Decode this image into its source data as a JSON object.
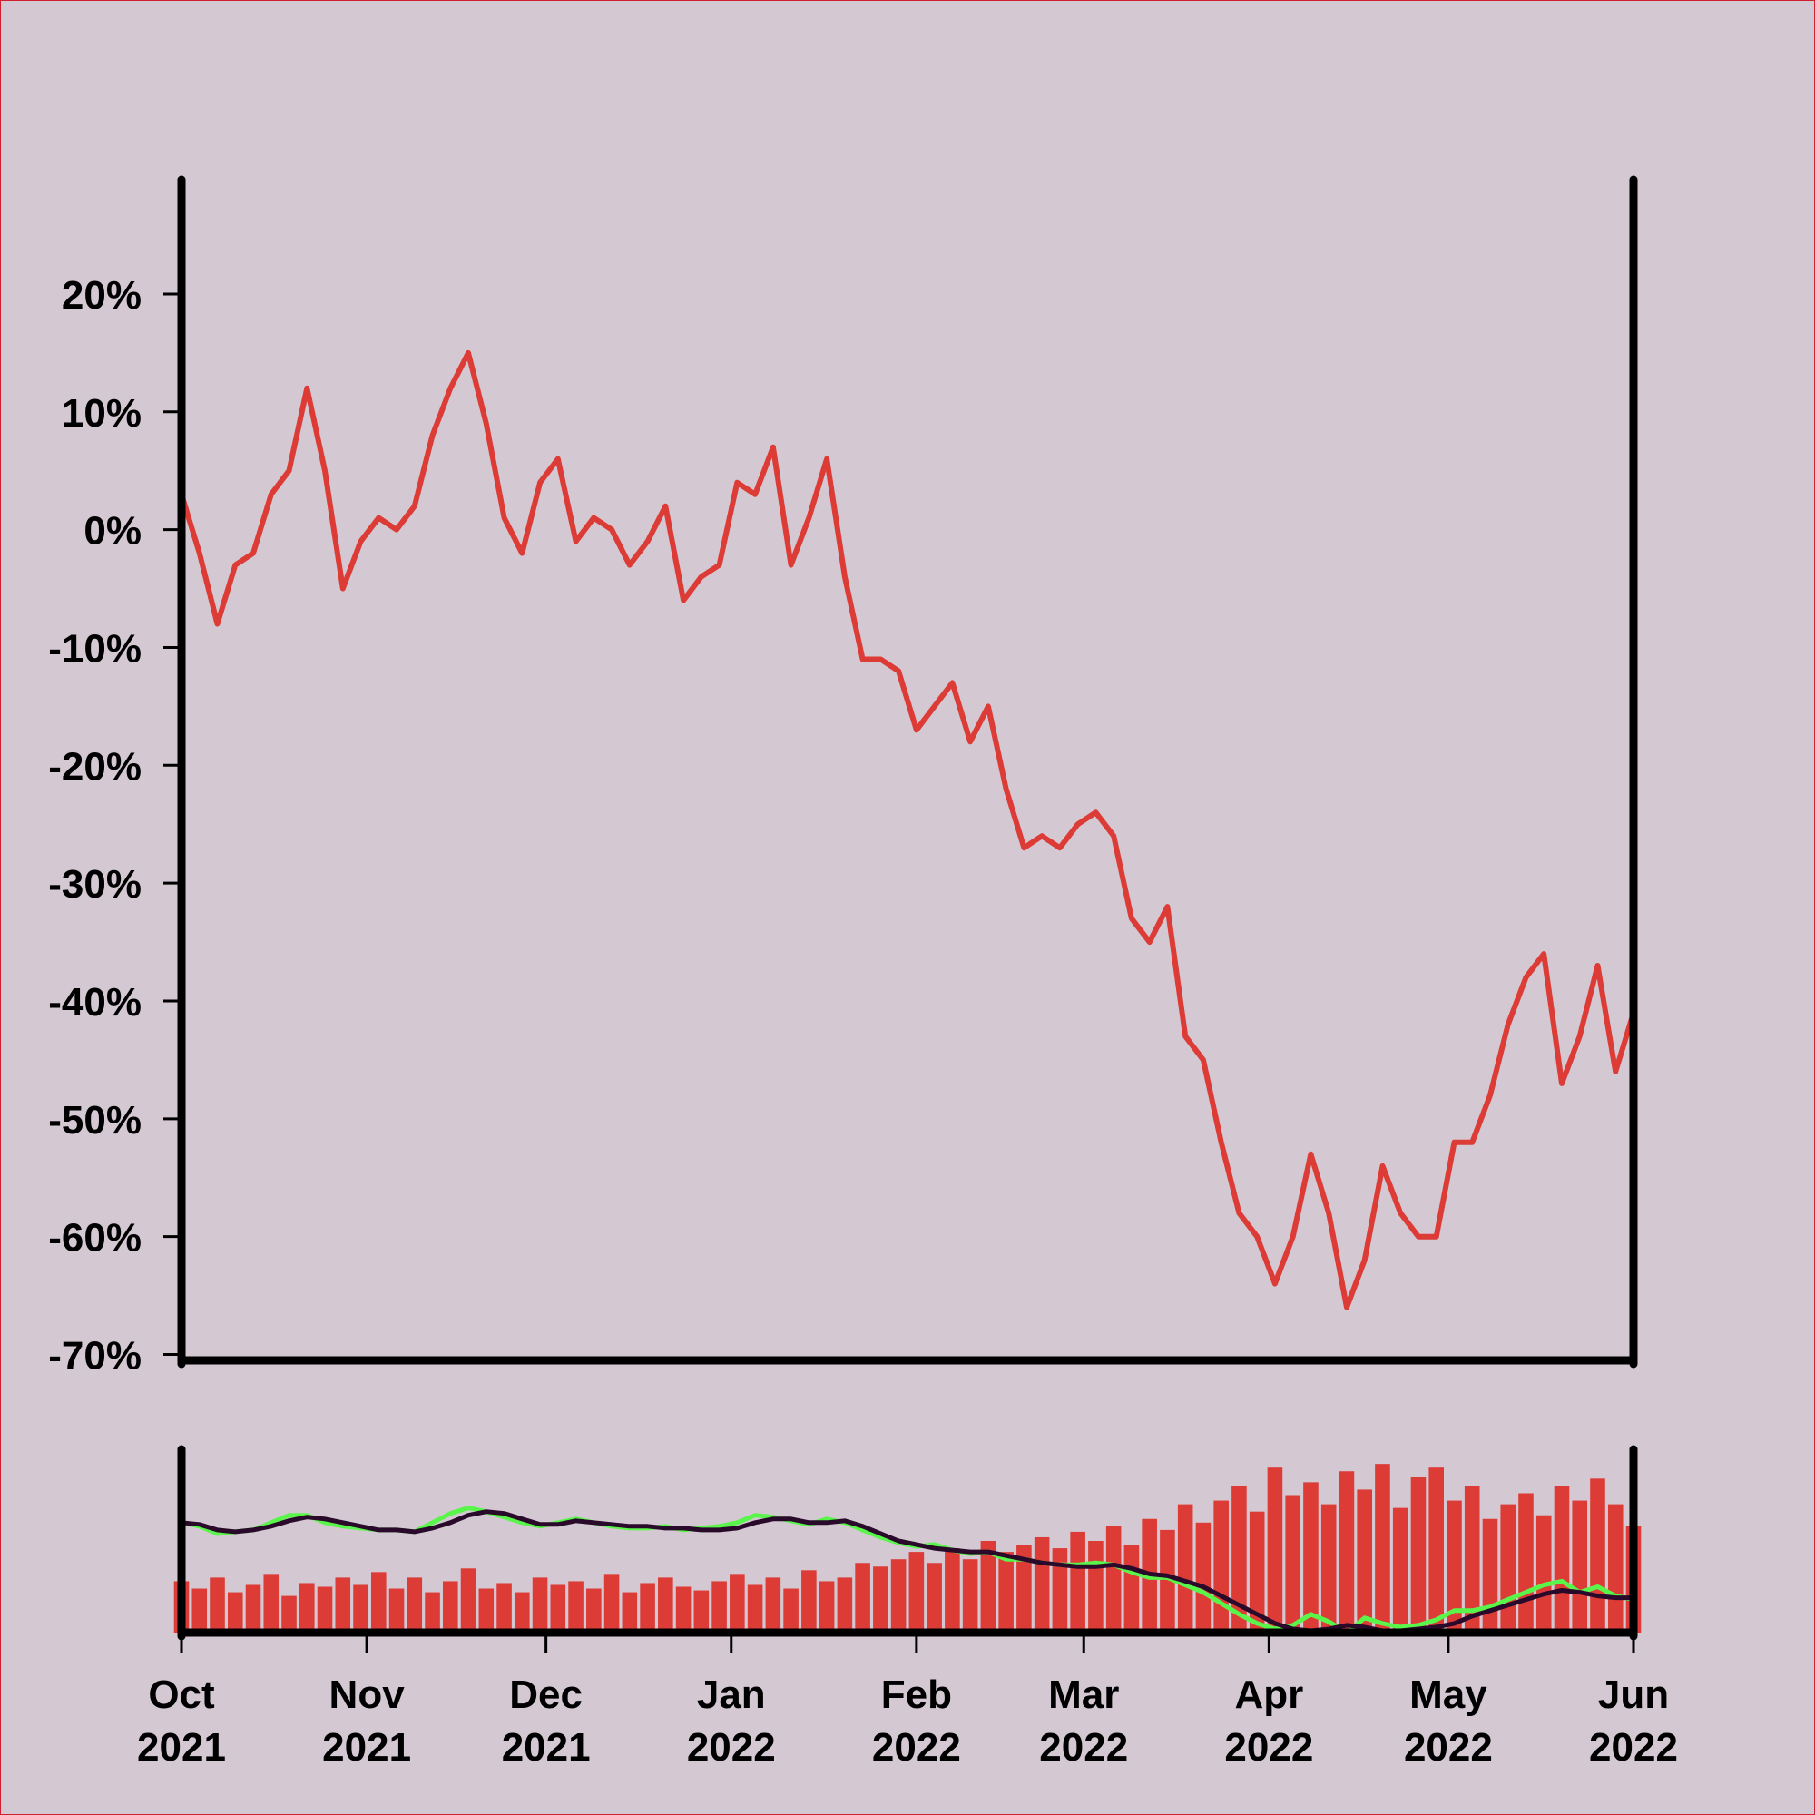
{
  "chart_data": [
    {
      "type": "line",
      "x": [
        0,
        3,
        6,
        9,
        12,
        15,
        18,
        21,
        24,
        27,
        30,
        33,
        36,
        39,
        42,
        45,
        48,
        51,
        54,
        57,
        60,
        63,
        66,
        69,
        72,
        75,
        78,
        81,
        84,
        87,
        90,
        93,
        96,
        99,
        102,
        105,
        108,
        111,
        114,
        117,
        120,
        123,
        126,
        129,
        132,
        135,
        138,
        141,
        144,
        147,
        150,
        153,
        156,
        159,
        162,
        165,
        168,
        171,
        174,
        177,
        180,
        183,
        186,
        189,
        192,
        195,
        198,
        201,
        204,
        207,
        210,
        213,
        216,
        219,
        222,
        225,
        228,
        231,
        234,
        237,
        240,
        243
      ],
      "series": [
        {
          "color": "#dc3b36",
          "values": [
            3,
            -2,
            -8,
            -3,
            -2,
            3,
            5,
            12,
            5,
            -5,
            -1,
            1,
            0,
            2,
            8,
            12,
            15,
            9,
            1,
            -2,
            4,
            6,
            -1,
            1,
            0,
            -3,
            -1,
            2,
            -6,
            -4,
            -3,
            4,
            3,
            7,
            -3,
            1,
            6,
            -4,
            -11,
            -11,
            -12,
            -17,
            -15,
            -13,
            -18,
            -15,
            -22,
            -27,
            -26,
            -27,
            -25,
            -24,
            -26,
            -33,
            -35,
            -32,
            -43,
            -45,
            -52,
            -58,
            -60,
            -64,
            -60,
            -53,
            -58,
            -66,
            -62,
            -54,
            -58,
            -60,
            -60,
            -52,
            -52,
            -48,
            -42,
            -38,
            -36,
            -47,
            -43,
            -37,
            -46,
            -41
          ]
        }
      ],
      "ylim": [
        -70.5,
        29.7
      ],
      "yticks": [
        {
          "value": -70,
          "label": "-70%"
        },
        {
          "value": -60,
          "label": "-60%"
        },
        {
          "value": -50,
          "label": "-50%"
        },
        {
          "value": -40,
          "label": "-40%"
        },
        {
          "value": -30,
          "label": "-30%"
        },
        {
          "value": -20,
          "label": "-20%"
        },
        {
          "value": -10,
          "label": "-10%"
        },
        {
          "value": 0,
          "label": "0%"
        },
        {
          "value": 10,
          "label": "10%"
        },
        {
          "value": 20,
          "label": "20%"
        }
      ],
      "xlim": [
        0,
        243
      ]
    },
    {
      "type": "bar",
      "x": [
        0,
        3,
        6,
        9,
        12,
        15,
        18,
        21,
        24,
        27,
        30,
        33,
        36,
        39,
        42,
        45,
        48,
        51,
        54,
        57,
        60,
        63,
        66,
        69,
        72,
        75,
        78,
        81,
        84,
        87,
        90,
        93,
        96,
        99,
        102,
        105,
        108,
        111,
        114,
        117,
        120,
        123,
        126,
        129,
        132,
        135,
        138,
        141,
        144,
        147,
        150,
        153,
        156,
        159,
        162,
        165,
        168,
        171,
        174,
        177,
        180,
        183,
        186,
        189,
        192,
        195,
        198,
        201,
        204,
        207,
        210,
        213,
        216,
        219,
        222,
        225,
        228,
        231,
        234,
        237,
        240,
        243
      ],
      "series": [
        {
          "kind": "bar",
          "color": "#dc3b36",
          "values": [
            28,
            24,
            30,
            22,
            26,
            32,
            20,
            27,
            25,
            30,
            26,
            33,
            24,
            30,
            22,
            28,
            35,
            24,
            27,
            22,
            30,
            26,
            28,
            24,
            32,
            22,
            27,
            30,
            25,
            23,
            28,
            32,
            26,
            30,
            24,
            34,
            28,
            30,
            38,
            36,
            40,
            44,
            38,
            46,
            40,
            50,
            44,
            48,
            52,
            46,
            55,
            50,
            58,
            48,
            62,
            56,
            70,
            60,
            72,
            80,
            66,
            90,
            75,
            82,
            70,
            88,
            78,
            92,
            68,
            85,
            90,
            72,
            80,
            62,
            70,
            76,
            64,
            80,
            72,
            84,
            70,
            58
          ]
        },
        {
          "kind": "line",
          "color": "#5af54a",
          "values": [
            60,
            58,
            54,
            55,
            56,
            60,
            64,
            64,
            60,
            58,
            57,
            56,
            56,
            55,
            60,
            65,
            68,
            66,
            63,
            60,
            58,
            60,
            62,
            60,
            58,
            57,
            57,
            58,
            56,
            57,
            58,
            60,
            64,
            63,
            61,
            59,
            62,
            60,
            56,
            52,
            49,
            47,
            48,
            45,
            43,
            44,
            40,
            40,
            38,
            37,
            37,
            38,
            37,
            33,
            30,
            30,
            26,
            22,
            16,
            10,
            5,
            2,
            4,
            10,
            6,
            0,
            8,
            5,
            3,
            4,
            7,
            12,
            12,
            14,
            18,
            22,
            26,
            28,
            22,
            25,
            20,
            18
          ]
        },
        {
          "kind": "line",
          "color": "#2a0a2a",
          "values": [
            60,
            59,
            56,
            55,
            56,
            58,
            61,
            63,
            62,
            60,
            58,
            56,
            56,
            55,
            57,
            60,
            64,
            66,
            65,
            62,
            59,
            59,
            61,
            60,
            59,
            58,
            58,
            57,
            57,
            56,
            56,
            57,
            60,
            62,
            62,
            60,
            60,
            61,
            58,
            54,
            50,
            48,
            46,
            45,
            44,
            44,
            42,
            40,
            38,
            37,
            36,
            36,
            37,
            35,
            32,
            31,
            28,
            25,
            20,
            15,
            10,
            5,
            2,
            1,
            2,
            4,
            3,
            1,
            1,
            2,
            3,
            5,
            9,
            12,
            15,
            18,
            21,
            23,
            22,
            20,
            19,
            19
          ]
        }
      ],
      "ylim": [
        0,
        100
      ],
      "xlim": [
        0,
        243
      ],
      "xticks": [
        {
          "value": 0,
          "label": [
            "Oct",
            "2021"
          ]
        },
        {
          "value": 31,
          "label": [
            "Nov",
            "2021"
          ]
        },
        {
          "value": 61,
          "label": [
            "Dec",
            "2021"
          ]
        },
        {
          "value": 92,
          "label": [
            "Jan",
            "2022"
          ]
        },
        {
          "value": 123,
          "label": [
            "Feb",
            "2022"
          ]
        },
        {
          "value": 151,
          "label": [
            "Mar",
            "2022"
          ]
        },
        {
          "value": 182,
          "label": [
            "Apr",
            "2022"
          ]
        },
        {
          "value": 212,
          "label": [
            "May",
            "2022"
          ]
        },
        {
          "value": 243,
          "label": [
            "Jun",
            "2022"
          ]
        }
      ]
    }
  ]
}
